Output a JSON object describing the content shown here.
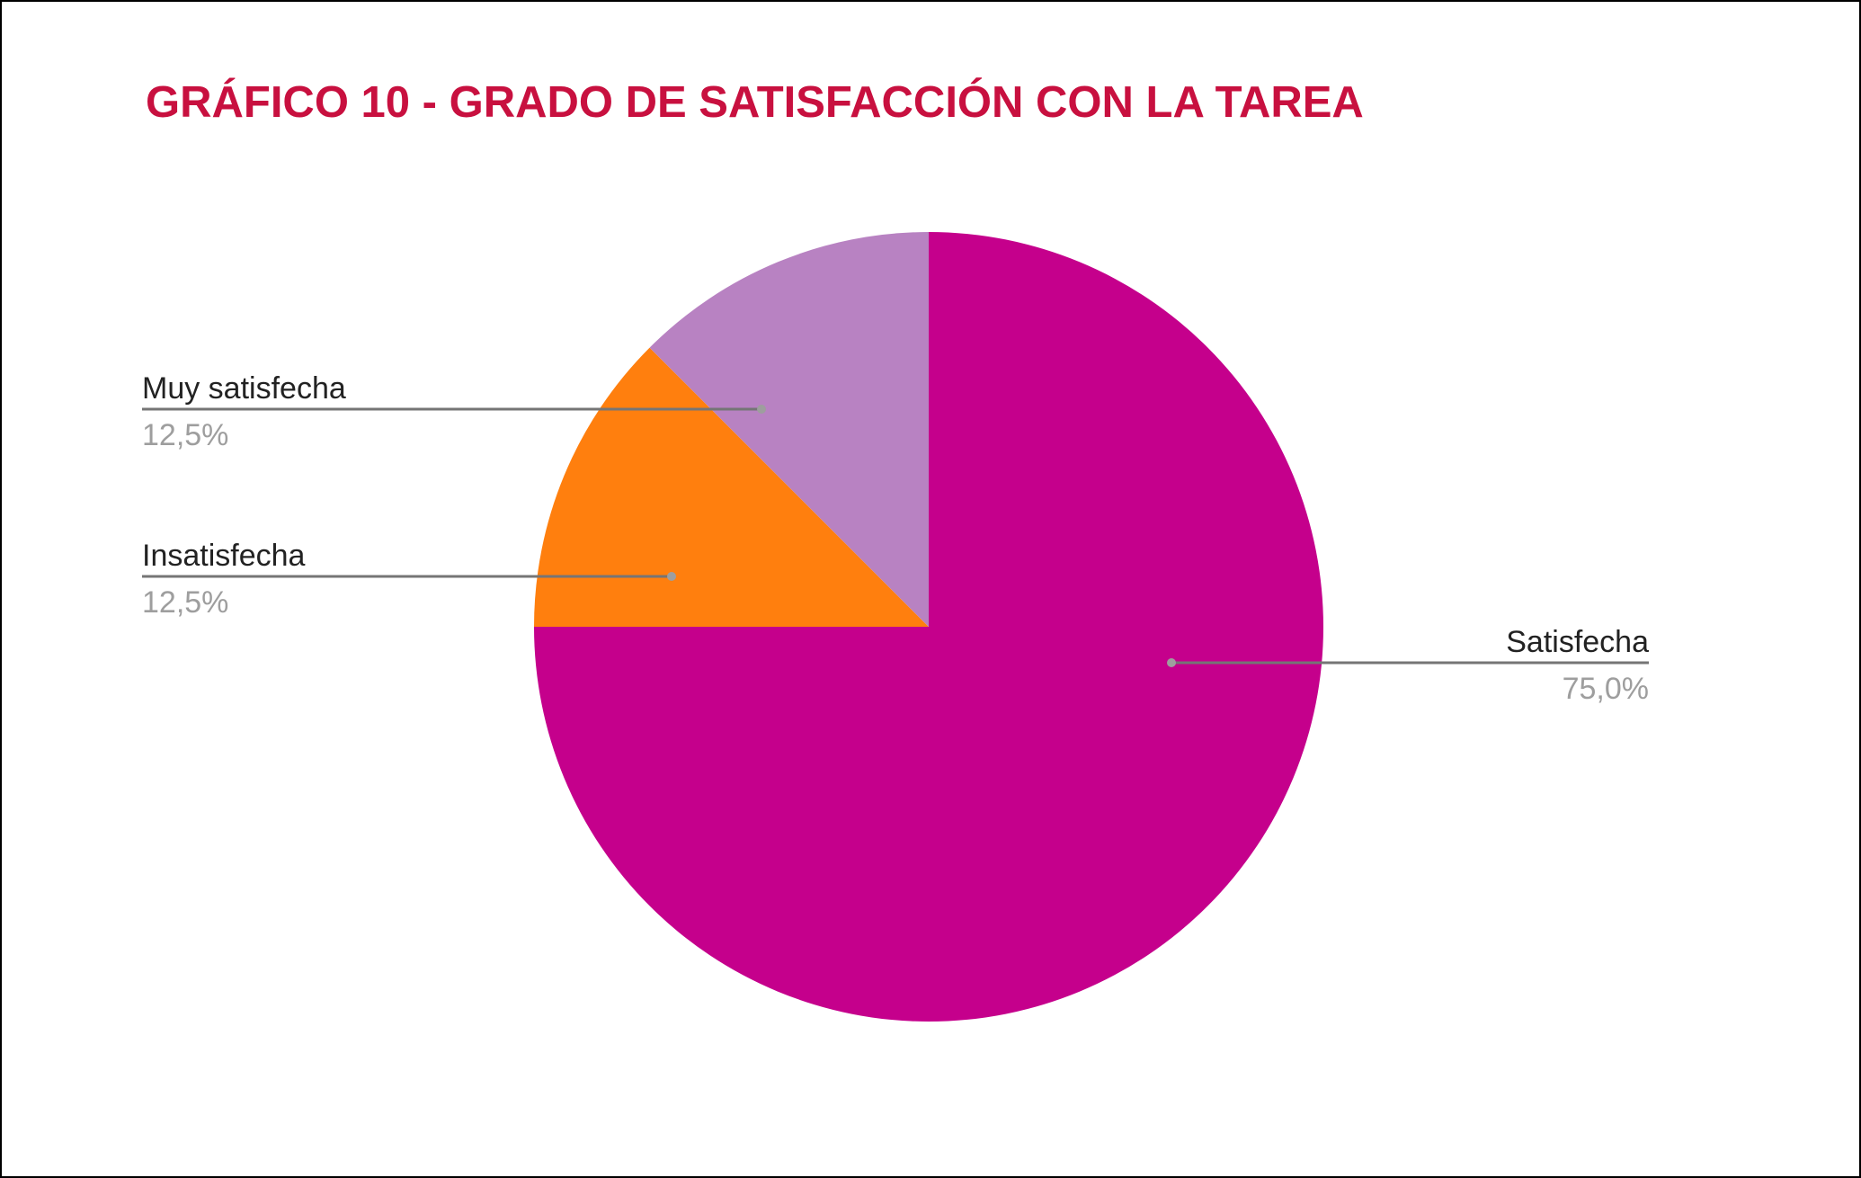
{
  "chart_data": {
    "type": "pie",
    "title": "GRÁFICO 10 - GRADO DE SATISFACCIÓN CON LA TAREA",
    "title_color": "#c8103f",
    "categories": [
      "Satisfecha",
      "Insatisfecha",
      "Muy satisfecha"
    ],
    "values": [
      75.0,
      12.5,
      12.5
    ],
    "value_labels": [
      "75,0%",
      "12,5%",
      "12,5%"
    ],
    "colors": [
      "#c5008c",
      "#ff7f0e",
      "#b882c2"
    ],
    "start_angle_deg": 0,
    "direction": "clockwise",
    "label_placement": [
      "right",
      "left",
      "left"
    ]
  }
}
